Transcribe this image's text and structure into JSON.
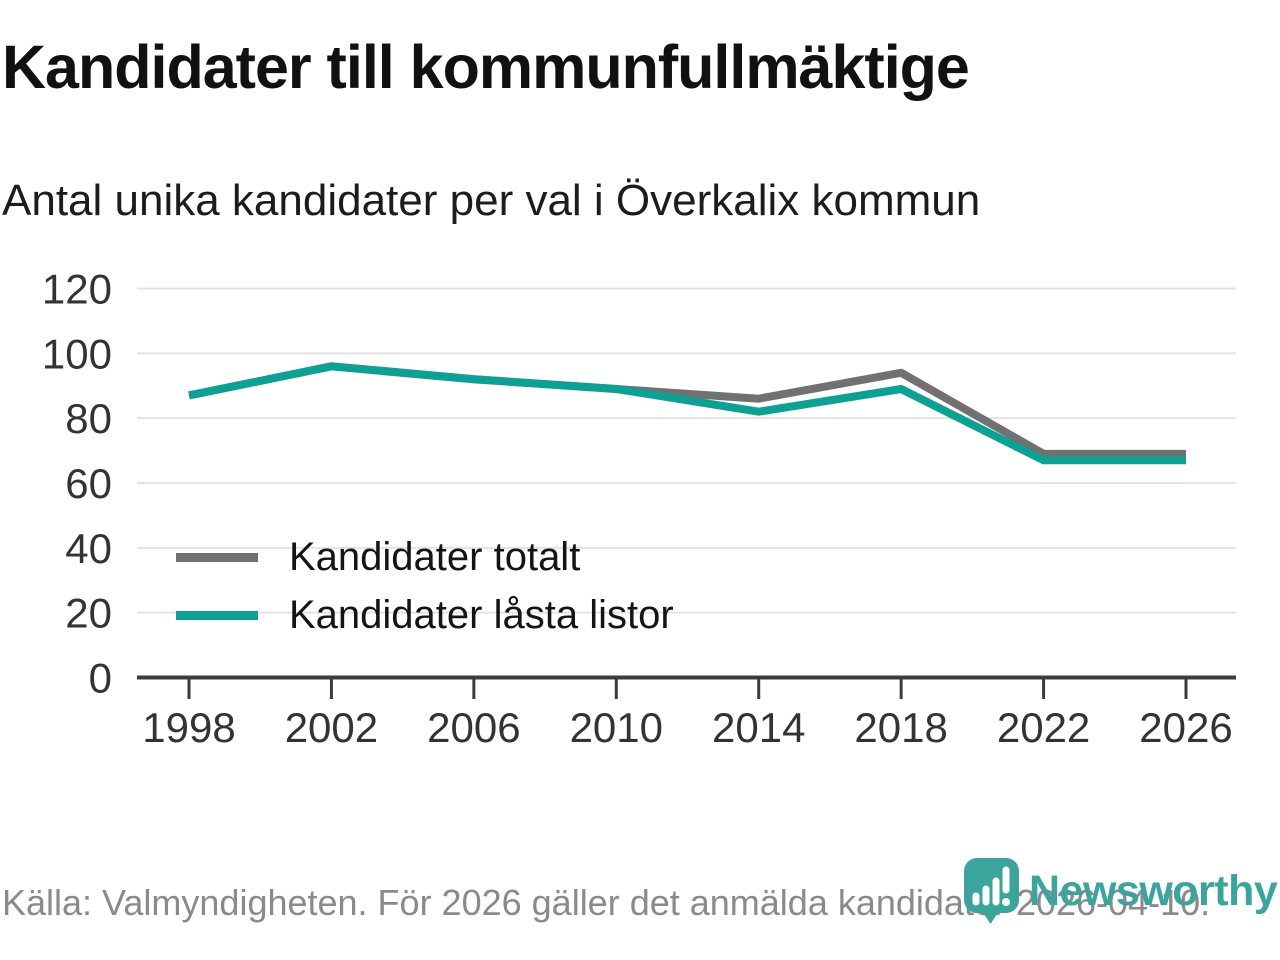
{
  "chart_data": {
    "type": "line",
    "title": "Kandidater till kommunfullmäktige",
    "subtitle": "Antal unika kandidater per val i Överkalix kommun",
    "x": [
      1998,
      2002,
      2006,
      2010,
      2014,
      2018,
      2022,
      2026
    ],
    "series": [
      {
        "name": "Kandidater totalt",
        "color": "#717171",
        "values": [
          87,
          96,
          92,
          89,
          86,
          94,
          69,
          69
        ]
      },
      {
        "name": "Kandidater låsta listor",
        "color": "#0da093",
        "values": [
          87,
          96,
          92,
          89,
          82,
          89,
          67,
          67
        ]
      }
    ],
    "xlabel": "",
    "ylabel": "",
    "ylim": [
      0,
      120
    ],
    "yticks": [
      0,
      20,
      40,
      60,
      80,
      100,
      120
    ],
    "grid": true,
    "legend_position": "inside-left"
  },
  "footer": {
    "source": "Källa: Valmyndigheten. För 2026 gäller det anmälda kandidater 2026-04-10.",
    "brand": "Newsworthy"
  },
  "colors": {
    "series_total_gray": "#717171",
    "series_locked_teal": "#0da093",
    "logo_teal": "#3ba49c",
    "grid_gray": "#e3e3e3",
    "axis_dark": "#3b3b3b",
    "source_gray": "#8a8a8a"
  }
}
